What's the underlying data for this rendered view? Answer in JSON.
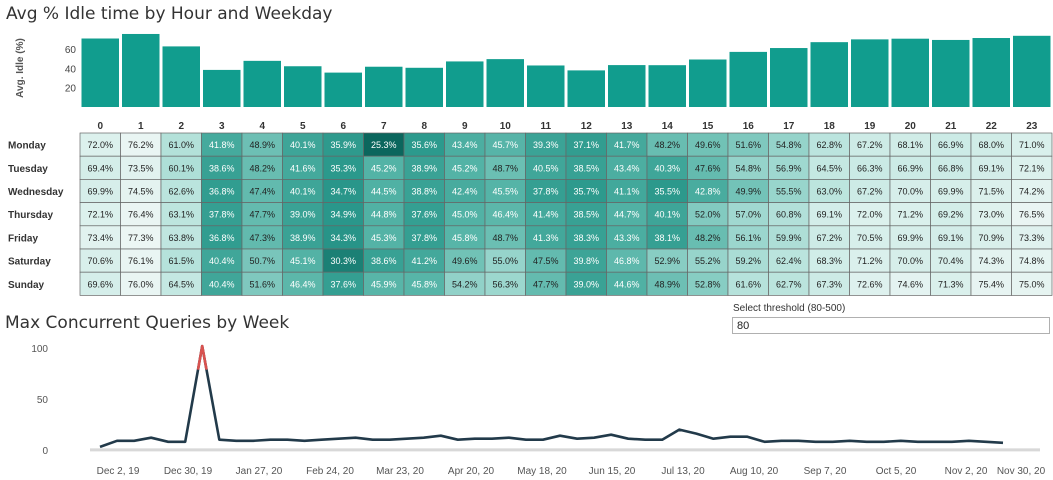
{
  "titles": {
    "idle": "Avg % Idle time by Hour and Weekday",
    "queries": "Max Concurrent Queries by Week"
  },
  "threshold": {
    "label": "Select threshold (80-500)",
    "value": "80"
  },
  "colors": {
    "bar": "#119d8e",
    "line": "#223a4a",
    "spike": "#d9524f"
  },
  "chart_data": [
    {
      "type": "bar",
      "ylabel": "Avg. Idle (%)",
      "categories": [
        "0",
        "1",
        "2",
        "3",
        "4",
        "5",
        "6",
        "7",
        "8",
        "9",
        "10",
        "11",
        "12",
        "13",
        "14",
        "15",
        "16",
        "17",
        "18",
        "19",
        "20",
        "21",
        "22",
        "23"
      ],
      "values": [
        71.1,
        75.8,
        62.9,
        38.5,
        47.9,
        42.3,
        35.7,
        41.8,
        40.7,
        47.3,
        49.7,
        43.1,
        38.0,
        43.5,
        43.4,
        49.3,
        57.2,
        61.2,
        67.3,
        70.2,
        70.9,
        69.6,
        71.6,
        73.9
      ],
      "yticks": [
        20,
        40,
        60
      ],
      "ylim": [
        0,
        82
      ]
    },
    {
      "type": "heatmap",
      "columns": [
        "0",
        "1",
        "2",
        "3",
        "4",
        "5",
        "6",
        "7",
        "8",
        "9",
        "10",
        "11",
        "12",
        "13",
        "14",
        "15",
        "16",
        "17",
        "18",
        "19",
        "20",
        "21",
        "22",
        "23"
      ],
      "rows": [
        {
          "name": "Monday",
          "values": [
            72.0,
            76.2,
            61.0,
            41.8,
            48.9,
            40.1,
            35.9,
            25.3,
            35.6,
            43.4,
            45.7,
            39.3,
            37.1,
            41.7,
            48.2,
            49.6,
            51.6,
            54.8,
            62.8,
            67.2,
            68.1,
            66.9,
            68.0,
            71.0
          ]
        },
        {
          "name": "Tuesday",
          "values": [
            69.4,
            73.5,
            60.1,
            38.6,
            48.2,
            41.6,
            35.3,
            45.2,
            38.9,
            45.2,
            48.7,
            40.5,
            38.5,
            43.4,
            40.3,
            47.6,
            54.8,
            56.9,
            64.5,
            66.3,
            66.9,
            66.8,
            69.1,
            72.1
          ]
        },
        {
          "name": "Wednesday",
          "values": [
            69.9,
            74.5,
            62.6,
            36.8,
            47.4,
            40.1,
            34.7,
            44.5,
            38.8,
            42.4,
            45.5,
            37.8,
            35.7,
            41.1,
            35.5,
            42.8,
            49.9,
            55.5,
            63.0,
            67.2,
            70.0,
            69.9,
            71.5,
            74.2
          ]
        },
        {
          "name": "Thursday",
          "values": [
            72.1,
            76.4,
            63.1,
            37.8,
            47.7,
            39.0,
            34.9,
            44.8,
            37.6,
            45.0,
            46.4,
            41.4,
            38.5,
            44.7,
            40.1,
            52.0,
            57.0,
            60.8,
            69.1,
            72.0,
            71.2,
            69.2,
            73.0,
            76.5
          ]
        },
        {
          "name": "Friday",
          "values": [
            73.4,
            77.3,
            63.8,
            36.8,
            47.3,
            38.9,
            34.3,
            45.3,
            37.8,
            45.8,
            48.7,
            41.3,
            38.3,
            43.3,
            38.1,
            48.2,
            56.1,
            59.9,
            67.2,
            70.5,
            69.9,
            69.1,
            70.9,
            73.3
          ]
        },
        {
          "name": "Saturday",
          "values": [
            70.6,
            76.1,
            61.5,
            40.4,
            50.7,
            45.1,
            30.3,
            38.6,
            41.2,
            49.6,
            55.0,
            47.5,
            39.8,
            46.8,
            52.9,
            55.2,
            59.2,
            62.4,
            68.3,
            71.2,
            70.0,
            70.4,
            74.3,
            74.8
          ]
        },
        {
          "name": "Sunday",
          "values": [
            69.6,
            76.0,
            64.5,
            40.4,
            51.6,
            46.4,
            37.6,
            45.9,
            45.8,
            54.2,
            56.3,
            47.7,
            39.0,
            44.6,
            48.9,
            52.8,
            61.6,
            62.7,
            67.3,
            72.6,
            74.6,
            71.3,
            75.4,
            75.0
          ]
        }
      ]
    },
    {
      "type": "line",
      "title": "Max Concurrent Queries by Week",
      "xticks": [
        "Dec 2, 19",
        "Dec 30, 19",
        "Jan 27, 20",
        "Feb 24, 20",
        "Mar 23, 20",
        "Apr 20, 20",
        "May 18, 20",
        "Jun 15, 20",
        "Jul 13, 20",
        "Aug 10, 20",
        "Sep 7, 20",
        "Oct 5, 20",
        "Nov 2, 20",
        "Nov 30, 20"
      ],
      "yticks": [
        0,
        50,
        100
      ],
      "ylim": [
        -5,
        110
      ],
      "threshold": 80,
      "values": [
        3,
        9,
        9,
        12,
        8,
        8,
        102,
        10,
        9,
        9,
        10,
        10,
        9,
        10,
        11,
        12,
        10,
        10,
        11,
        12,
        14,
        10,
        11,
        11,
        12,
        10,
        10,
        14,
        11,
        12,
        15,
        11,
        10,
        10,
        20,
        16,
        11,
        13,
        13,
        8,
        9,
        9,
        8,
        8,
        9,
        8,
        8,
        9,
        8,
        8,
        8,
        9,
        8,
        7
      ]
    }
  ]
}
